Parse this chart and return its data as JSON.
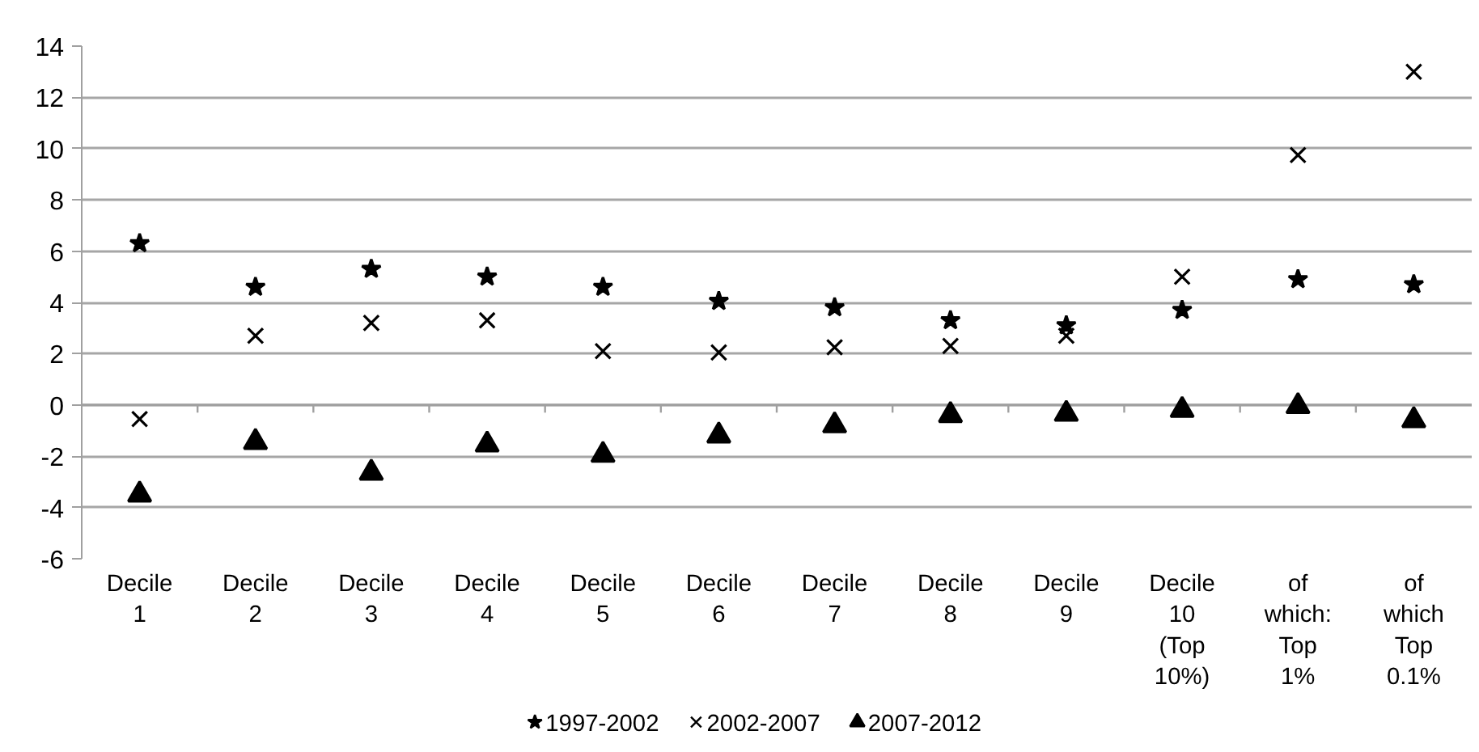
{
  "chart_data": {
    "type": "scatter",
    "categories": [
      "Decile 1",
      "Decile 2",
      "Decile 3",
      "Decile 4",
      "Decile 5",
      "Decile 6",
      "Decile 7",
      "Decile 8",
      "Decile 9",
      "Decile 10 (Top 10%)",
      "of which: Top 1%",
      "of which Top 0.1%"
    ],
    "series": [
      {
        "name": "1997-2002",
        "color": "#000000",
        "marker": "star",
        "values": [
          6.3,
          4.6,
          5.3,
          5.0,
          4.6,
          4.05,
          3.8,
          3.3,
          3.1,
          3.7,
          4.9,
          4.7
        ]
      },
      {
        "name": "2002-2007",
        "color": "#000000",
        "marker": "cross",
        "values": [
          -0.55,
          2.7,
          3.2,
          3.3,
          2.1,
          2.05,
          2.25,
          2.3,
          2.7,
          5.0,
          9.75,
          13.0
        ]
      },
      {
        "name": "2007-2012",
        "color": "#000000",
        "marker": "triangle",
        "values": [
          -3.5,
          -1.45,
          -2.65,
          -1.55,
          -1.95,
          -1.2,
          -0.8,
          -0.4,
          -0.35,
          -0.2,
          -0.05,
          -0.6
        ]
      }
    ],
    "ylim": [
      -6,
      14
    ],
    "yticks": [
      -6,
      -4,
      -2,
      0,
      2,
      4,
      6,
      8,
      10,
      12,
      14
    ],
    "grid": "y",
    "legend": "bottom"
  }
}
